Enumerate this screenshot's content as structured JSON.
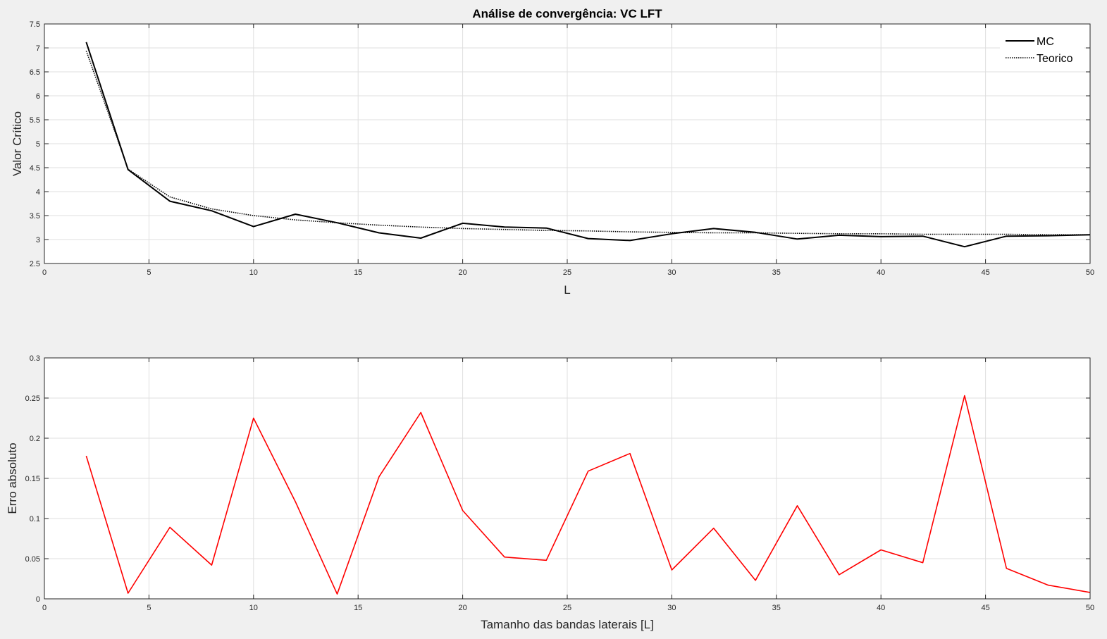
{
  "chart_data": [
    {
      "type": "line",
      "title": "Análise de convergência: VC LFT",
      "xlabel": "L",
      "ylabel": "Valor Crítico",
      "xlim": [
        0,
        50
      ],
      "ylim": [
        2.5,
        7.5
      ],
      "xticks": [
        "0",
        "5",
        "10",
        "15",
        "20",
        "25",
        "30",
        "35",
        "40",
        "45",
        "50"
      ],
      "yticks": [
        "2.5",
        "3",
        "3.5",
        "4",
        "4.5",
        "5",
        "5.5",
        "6",
        "6.5",
        "7",
        "7.5"
      ],
      "grid": true,
      "legend_position": "top-right",
      "x": [
        2,
        4,
        6,
        8,
        10,
        12,
        14,
        16,
        18,
        20,
        22,
        24,
        26,
        28,
        30,
        32,
        34,
        36,
        38,
        40,
        42,
        44,
        46,
        48,
        50
      ],
      "series": [
        {
          "name": "MC",
          "color": "#000000",
          "style": "solid",
          "values": [
            7.12,
            4.46,
            3.8,
            3.6,
            3.27,
            3.53,
            3.35,
            3.14,
            3.03,
            3.34,
            3.26,
            3.24,
            3.02,
            2.98,
            3.12,
            3.23,
            3.15,
            3.01,
            3.09,
            3.06,
            3.07,
            2.85,
            3.07,
            3.08,
            3.1
          ]
        },
        {
          "name": "Teorico",
          "color": "#000000",
          "style": "dotted",
          "values": [
            6.94,
            4.47,
            3.89,
            3.64,
            3.5,
            3.41,
            3.35,
            3.3,
            3.26,
            3.23,
            3.21,
            3.19,
            3.18,
            3.16,
            3.15,
            3.14,
            3.14,
            3.13,
            3.12,
            3.12,
            3.11,
            3.11,
            3.11,
            3.1,
            3.1
          ]
        }
      ]
    },
    {
      "type": "line",
      "title": "",
      "xlabel": "Tamanho das bandas laterais [L]",
      "ylabel": "Erro absoluto",
      "xlim": [
        0,
        50
      ],
      "ylim": [
        0,
        0.3
      ],
      "xticks": [
        "0",
        "5",
        "10",
        "15",
        "20",
        "25",
        "30",
        "35",
        "40",
        "45",
        "50"
      ],
      "yticks": [
        "0",
        "0.05",
        "0.1",
        "0.15",
        "0.2",
        "0.25",
        "0.3"
      ],
      "grid": true,
      "x": [
        2,
        4,
        6,
        8,
        10,
        12,
        14,
        16,
        18,
        20,
        22,
        24,
        26,
        28,
        30,
        32,
        34,
        36,
        38,
        40,
        42,
        44,
        46,
        48,
        50
      ],
      "series": [
        {
          "color": "#ff0000",
          "style": "solid",
          "values": [
            0.178,
            0.007,
            0.089,
            0.042,
            0.225,
            0.121,
            0.006,
            0.152,
            0.232,
            0.11,
            0.052,
            0.048,
            0.159,
            0.181,
            0.036,
            0.088,
            0.023,
            0.116,
            0.03,
            0.061,
            0.045,
            0.253,
            0.038,
            0.017,
            0.008
          ]
        }
      ]
    }
  ]
}
